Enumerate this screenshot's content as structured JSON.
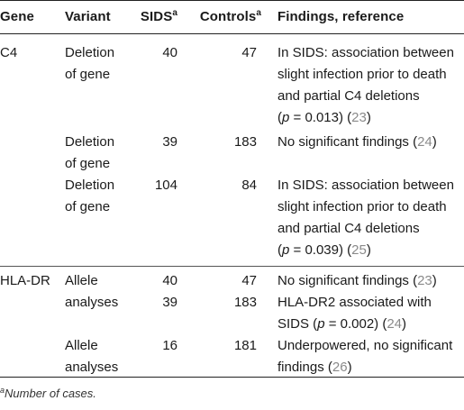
{
  "headers": {
    "gene": "Gene",
    "variant": "Variant",
    "sids": "SIDS",
    "sids_sup": "a",
    "controls": "Controls",
    "controls_sup": "a",
    "findings": "Findings, reference"
  },
  "rows": [
    {
      "gene": "C4",
      "variant_l1": "Deletion",
      "variant_l2": "of gene",
      "sids": "40",
      "controls": "47",
      "f1": "In SIDS: association between",
      "f2": "slight infection prior to death",
      "f3": "and partial C4 deletions",
      "p_open": "(",
      "p_sym": "p",
      "p_val": " = 0.013) (",
      "ref": "23",
      "close": ")"
    },
    {
      "gene": "",
      "variant_l1": "Deletion",
      "variant_l2": "of gene",
      "sids": "39",
      "controls": "183",
      "f1": "No significant findings (",
      "ref": "24",
      "close": ")"
    },
    {
      "gene": "",
      "variant_l1": "Deletion",
      "variant_l2": "of gene",
      "sids": "104",
      "controls": "84",
      "f1": "In SIDS: association between",
      "f2": "slight infection prior to death",
      "f3": "and partial C4 deletions",
      "p_open": "(",
      "p_sym": "p",
      "p_val": " = 0.039) (",
      "ref": "25",
      "close": ")"
    },
    {
      "gene": "HLA-DR",
      "variant_l1": "Allele",
      "variant_l2": "analyses",
      "sids": "40",
      "controls": "47",
      "f1": "No significant findings (",
      "ref": "23",
      "close": ")"
    },
    {
      "gene": "",
      "sids": "39",
      "controls": "183",
      "f1": "HLA-DR2 associated with",
      "f2_pre": "SIDS (",
      "p_sym": "p",
      "p_val": " = 0.002) (",
      "ref": "24",
      "close": ")"
    },
    {
      "gene": "",
      "variant_l1": "Allele",
      "variant_l2": "analyses",
      "sids": "16",
      "controls": "181",
      "f1": "Underpowered, no significant",
      "f2_pre": "findings (",
      "ref": "26",
      "close": ")"
    }
  ],
  "footnote": {
    "sup": "a",
    "text": "Number of cases."
  }
}
